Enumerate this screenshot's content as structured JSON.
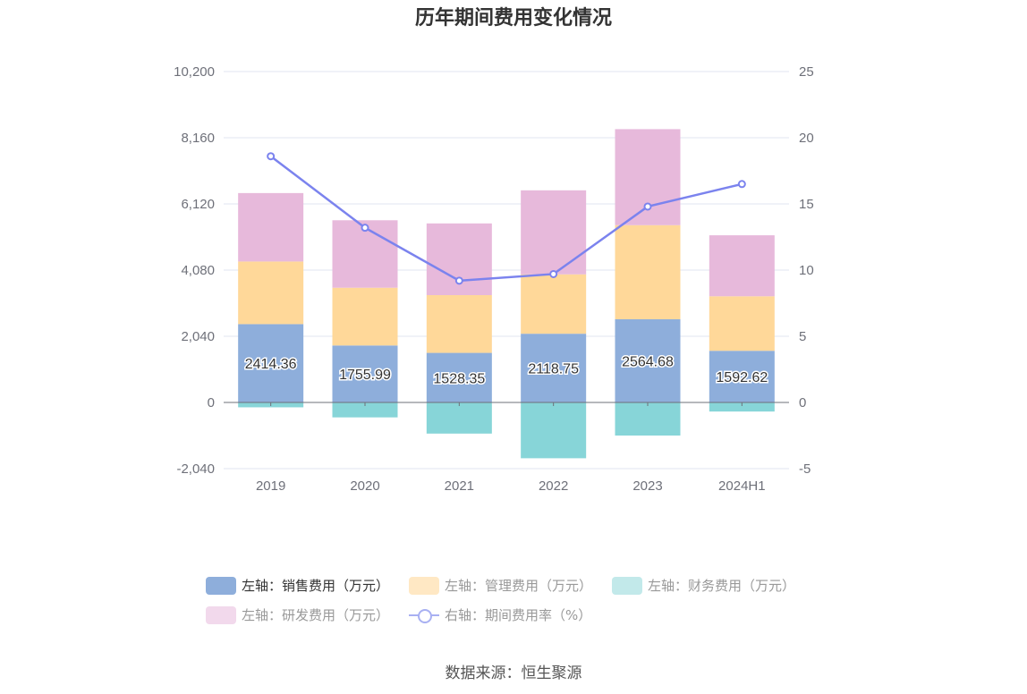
{
  "chart_data": {
    "type": "bar",
    "title": "历年期间费用变化情况",
    "categories": [
      "2019",
      "2020",
      "2021",
      "2022",
      "2023",
      "2024H1"
    ],
    "left_axis": {
      "ticks": [
        "10,200",
        "8,160",
        "6,120",
        "4,080",
        "2,040",
        "0",
        "-2,040"
      ],
      "ylim": [
        -2040,
        10200
      ]
    },
    "right_axis": {
      "ticks": [
        "25",
        "20",
        "15",
        "10",
        "5",
        "0",
        "-5"
      ],
      "ylim": [
        -5,
        25
      ]
    },
    "series": [
      {
        "name": "左轴：销售费用（万元）",
        "type": "bar",
        "axis": "left",
        "color": "#8eaedb",
        "values": [
          2414.36,
          1755.99,
          1528.35,
          2118.75,
          2564.68,
          1592.62
        ],
        "labels": [
          "2414.36",
          "1755.99",
          "1528.35",
          "2118.75",
          "2564.68",
          "1592.62"
        ]
      },
      {
        "name": "左轴：管理费用（万元）",
        "type": "bar",
        "axis": "left",
        "color": "#ffd899",
        "values": [
          1930,
          1780,
          1780,
          1830,
          2900,
          1680
        ]
      },
      {
        "name": "左轴：财务费用（万元）",
        "type": "bar",
        "axis": "left",
        "color": "#87d5d8",
        "values": [
          -150,
          -460,
          -960,
          -1720,
          -1020,
          -280
        ]
      },
      {
        "name": "左轴：研发费用（万元）",
        "type": "bar",
        "axis": "left",
        "color": "#e7b9db",
        "values": [
          2110,
          2080,
          2210,
          2590,
          2960,
          1880
        ]
      },
      {
        "name": "右轴：期间费用率（%）",
        "type": "line",
        "axis": "right",
        "color": "#7b83ee",
        "values": [
          18.6,
          13.2,
          9.2,
          9.7,
          14.8,
          16.5
        ]
      }
    ],
    "grid": true,
    "legend_position": "bottom"
  },
  "source": "数据来源：恒生聚源"
}
